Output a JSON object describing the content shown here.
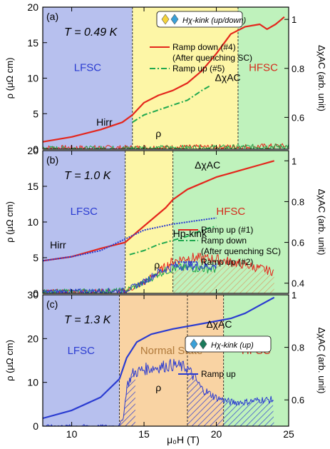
{
  "figure": {
    "shared_xlabel": "μ₀H (T)"
  },
  "chart_data": [
    {
      "type": "line",
      "panel": "(a)",
      "temperature_label": "T = 0.49 K",
      "x_range": [
        8,
        25
      ],
      "y_left_range": [
        0,
        20
      ],
      "y_left_label": "ρ (μΩ cm)",
      "y_left_ticks": [
        0,
        5,
        10,
        15,
        20
      ],
      "y_right_range": [
        0.47,
        1.05
      ],
      "y_right_label": "ΔχAC (arb. unit)",
      "y_right_ticks": [
        0.6,
        0.8,
        1
      ],
      "x_ticks": [
        10,
        15,
        20,
        25
      ],
      "x_tick_labels_shown": false,
      "regions": [
        {
          "label": "LFSC",
          "from": 8,
          "to": 14.2,
          "color": "#b7c0ee"
        },
        {
          "label": "",
          "from": 14.2,
          "to": 21.5,
          "color": "#fdf6a6"
        },
        {
          "label": "HFSC",
          "from": 21.5,
          "to": 25,
          "color": "#bff2bc"
        }
      ],
      "vlines": [
        14.2,
        21.5
      ],
      "annotations": [
        {
          "text": "Hirr",
          "x": 11.7,
          "y_left": 3.3
        },
        {
          "text": "ΔχAC",
          "x": 19.9,
          "y_left": 9.6
        },
        {
          "text": "ρ",
          "x": 15.8,
          "y_left": 1.7
        }
      ],
      "legend": {
        "entries": [
          "Ramp down (#4)",
          "(After quenching SC)",
          "Ramp up (#5)"
        ],
        "marker_legend": "Hχ-kink (up/down)",
        "placement": "top-left"
      },
      "series": [
        {
          "name": "Ramp down (#4)",
          "axis": "right",
          "color": "#e4261c",
          "style": "solid",
          "x": [
            8,
            10,
            12,
            13.5,
            14.2,
            15,
            16,
            17,
            18,
            19,
            20,
            21,
            22,
            23,
            23.5,
            24.1,
            24.5,
            24.7
          ],
          "y": [
            0.5,
            0.52,
            0.55,
            0.58,
            0.61,
            0.66,
            0.69,
            0.71,
            0.74,
            0.79,
            0.86,
            0.94,
            0.97,
            0.98,
            0.96,
            0.98,
            1.0,
            1.01
          ]
        },
        {
          "name": "Ramp up (#5)",
          "axis": "right",
          "color": "#20a84f",
          "style": "dashdot",
          "x": [
            14.2,
            15,
            16,
            17,
            18,
            19,
            19.6
          ],
          "y": [
            0.58,
            0.61,
            0.63,
            0.65,
            0.67,
            0.71,
            0.73
          ]
        },
        {
          "name": "ρ (ramp down)",
          "axis": "left",
          "color": "#e4261c",
          "style": "noisy",
          "x": [
            8,
            11,
            14,
            17,
            20,
            23,
            25
          ],
          "y": [
            0.2,
            0.2,
            0.2,
            0.25,
            0.3,
            0.4,
            0.45
          ]
        },
        {
          "name": "ρ (ramp up)",
          "axis": "left",
          "color": "#20a84f",
          "style": "noisy",
          "x": [
            8,
            11,
            14,
            17,
            20,
            23,
            25
          ],
          "y": [
            0.1,
            0.1,
            0.15,
            0.2,
            0.25,
            0.35,
            0.4
          ]
        }
      ]
    },
    {
      "type": "line",
      "panel": "(b)",
      "temperature_label": "T = 1.0 K",
      "x_range": [
        8,
        25
      ],
      "y_left_range": [
        0,
        20
      ],
      "y_left_label": "ρ (μΩ cm)",
      "y_left_ticks": [
        0,
        5,
        10,
        15,
        20
      ],
      "y_right_range": [
        0.35,
        1.05
      ],
      "y_right_label": "ΔχAC (arb. unit)",
      "y_right_ticks": [
        0.4,
        0.6,
        0.8,
        1
      ],
      "x_ticks": [
        10,
        15,
        20,
        25
      ],
      "x_tick_labels_shown": false,
      "regions": [
        {
          "label": "LFSC",
          "from": 8,
          "to": 13.7,
          "color": "#b7c0ee"
        },
        {
          "label": "",
          "from": 13.7,
          "to": 17,
          "color": "#fdf6a6"
        },
        {
          "label": "HFSC",
          "from": 17,
          "to": 25,
          "color": "#bff2bc"
        }
      ],
      "vlines": [
        13.7,
        17
      ],
      "annotations": [
        {
          "text": "Hirr",
          "x": 8.5,
          "y_left": 6.3
        },
        {
          "text": "ΔχAC",
          "x": 18.5,
          "y_left": 17.5
        },
        {
          "text": "Hp-kink",
          "x": 17,
          "y_left": 7.9
        },
        {
          "text": "ρ",
          "x": 15.7,
          "y_left": 3.5
        }
      ],
      "legend": {
        "entries": [
          "Ramp up (#1)",
          "Ramp down",
          "(After quenching SC)",
          "Ramp up (#2)"
        ],
        "placement": "right"
      },
      "series": [
        {
          "name": "Ramp down",
          "axis": "right",
          "color": "#e4261c",
          "style": "solid",
          "x": [
            8,
            10,
            12,
            13.7,
            14.5,
            15.5,
            16.5,
            17,
            18,
            19,
            20,
            21,
            22,
            23,
            24
          ],
          "y": [
            0.51,
            0.53,
            0.57,
            0.6,
            0.65,
            0.71,
            0.77,
            0.81,
            0.86,
            0.89,
            0.92,
            0.94,
            0.96,
            0.98,
            1.0
          ]
        },
        {
          "name": "Ramp up (#1)",
          "axis": "right",
          "color": "#20a84f",
          "style": "dashdot",
          "x": [
            14,
            15,
            16,
            17,
            18,
            19,
            20
          ],
          "y": [
            0.54,
            0.56,
            0.59,
            0.61,
            0.63,
            0.66,
            0.68
          ]
        },
        {
          "name": "Ramp up (#2)",
          "axis": "right",
          "color": "#2a3bd1",
          "style": "dotted",
          "x": [
            8,
            10,
            12,
            13.5,
            15,
            17,
            19,
            20
          ],
          "y": [
            0.51,
            0.53,
            0.56,
            0.61,
            0.66,
            0.69,
            0.71,
            0.72
          ]
        },
        {
          "name": "ρ (ramp down)",
          "axis": "left",
          "color": "#e4261c",
          "style": "noisy",
          "x": [
            8,
            13.7,
            15,
            16,
            17,
            18,
            20,
            22,
            23,
            24
          ],
          "y": [
            0.2,
            0.3,
            1.5,
            3,
            4.5,
            5,
            4.8,
            4,
            3.5,
            3
          ]
        },
        {
          "name": "ρ (ramp up #1)",
          "axis": "left",
          "color": "#20a84f",
          "style": "noisy",
          "x": [
            8,
            13.7,
            15,
            16,
            17,
            18,
            20
          ],
          "y": [
            0.2,
            0.4,
            1.5,
            2.8,
            3.5,
            3.6,
            3.4
          ]
        },
        {
          "name": "ρ (ramp up #2)",
          "axis": "left",
          "color": "#2a3bd1",
          "style": "noisy",
          "x": [
            8,
            13.7,
            15,
            16,
            17,
            18,
            20
          ],
          "y": [
            0.2,
            0.4,
            1.6,
            3,
            3.8,
            3.9,
            3.8
          ]
        }
      ]
    },
    {
      "type": "line",
      "panel": "(c)",
      "temperature_label": "T = 1.3 K",
      "x_range": [
        8,
        25
      ],
      "y_left_range": [
        0,
        30
      ],
      "y_left_label": "ρ (μΩ cm)",
      "y_left_ticks": [
        0,
        10,
        20,
        30
      ],
      "y_right_range": [
        0.5,
        1.0
      ],
      "y_right_label": "ΔχAC (arb. unit)",
      "y_right_ticks": [
        0.6,
        0.8,
        1
      ],
      "x_ticks": [
        10,
        15,
        20,
        25
      ],
      "x_tick_labels_shown": true,
      "regions": [
        {
          "label": "LFSC",
          "from": 8,
          "to": 13.3,
          "color": "#b7c0ee"
        },
        {
          "label": "Normal State",
          "from": 13.3,
          "to": 20.5,
          "color": "#f9d3a3"
        },
        {
          "label": "HFSC",
          "from": 20.5,
          "to": 25,
          "color": "#bff2bc"
        }
      ],
      "vlines": [
        13.3,
        18,
        20.5
      ],
      "annotations": [
        {
          "text": "ΔχAC",
          "x": 19.3,
          "y_left": 22.5
        },
        {
          "text": "ρ",
          "x": 15.8,
          "y_left": 8
        }
      ],
      "legend": {
        "entries": [
          "Ramp up"
        ],
        "marker_legend": "Hχ-kink (up)",
        "placement": "right"
      },
      "series": [
        {
          "name": "Ramp up",
          "axis": "right",
          "color": "#2a3bd1",
          "style": "solid",
          "x": [
            8,
            10,
            12,
            13.3,
            13.8,
            14.5,
            15.5,
            17,
            18,
            19,
            20,
            21,
            22,
            23,
            24
          ],
          "y": [
            0.53,
            0.56,
            0.61,
            0.68,
            0.76,
            0.82,
            0.85,
            0.87,
            0.88,
            0.89,
            0.9,
            0.91,
            0.93,
            0.96,
            0.99
          ]
        },
        {
          "name": "ρ (ramp up)",
          "axis": "left",
          "color": "#2a3bd1",
          "style": "noisy",
          "x": [
            8,
            13.3,
            13.6,
            13.8,
            14.2,
            15,
            16,
            17,
            18,
            18.5,
            19,
            20,
            21,
            22,
            23,
            24
          ],
          "y": [
            0,
            0,
            2.5,
            9,
            12,
            13,
            13.5,
            14,
            13.3,
            11,
            8.5,
            6.5,
            5.5,
            5.5,
            6,
            6
          ]
        }
      ]
    }
  ]
}
